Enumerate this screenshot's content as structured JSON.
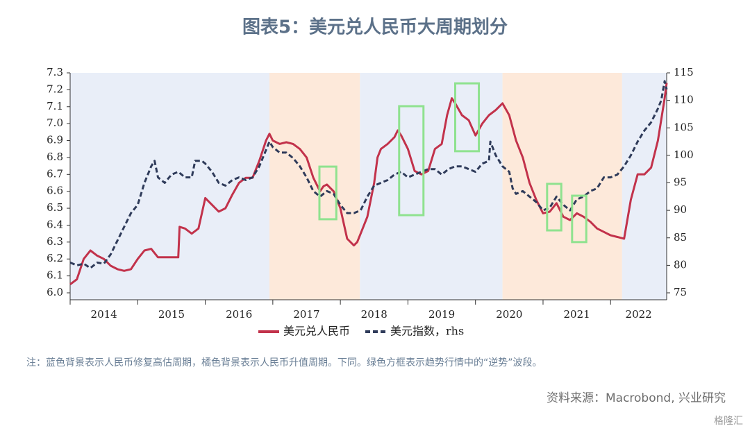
{
  "chart_data": {
    "type": "line",
    "title": "图表5：美元兑人民币大周期划分",
    "note": "注：蓝色背景表示人民币修复高估周期，橘色背景表示人民币升值周期。下同。绿色方框表示趋势行情中的“逆势”波段。",
    "source": "资料来源：Macrobond, 兴业研究",
    "watermark": "格隆汇",
    "xlim": [
      2014,
      2022.83
    ],
    "xticks": [
      {
        "value": 2014,
        "label": "2014"
      },
      {
        "value": 2015,
        "label": "2015"
      },
      {
        "value": 2016,
        "label": "2016"
      },
      {
        "value": 2017,
        "label": "2017"
      },
      {
        "value": 2018,
        "label": "2018"
      },
      {
        "value": 2019,
        "label": "2019"
      },
      {
        "value": 2020,
        "label": "2020"
      },
      {
        "value": 2021,
        "label": "2021"
      },
      {
        "value": 2022,
        "label": "2022"
      }
    ],
    "ylim": [
      6.0,
      7.3
    ],
    "yticks": [
      {
        "value": 6.0,
        "label": "6.0"
      },
      6.1,
      6.2,
      6.3,
      6.4,
      6.5,
      6.6,
      6.7,
      6.8,
      6.9,
      {
        "value": 7.0,
        "label": "7.0"
      },
      7.1,
      7.2,
      7.3
    ],
    "y2lim": [
      75,
      115
    ],
    "y2ticks": [
      75,
      80,
      85,
      90,
      95,
      100,
      105,
      110,
      115
    ],
    "bands": [
      {
        "start": 2014,
        "end": 2016.95,
        "color": "#e9eef8"
      },
      {
        "start": 2016.95,
        "end": 2018.29,
        "color": "#fde9da"
      },
      {
        "start": 2018.29,
        "end": 2020.4,
        "color": "#e9eef8"
      },
      {
        "start": 2020.4,
        "end": 2022.17,
        "color": "#fde9da"
      },
      {
        "start": 2022.17,
        "end": 2022.83,
        "color": "#e9eef8"
      }
    ],
    "boxes": [
      {
        "x": [
          2017.69,
          2017.94
        ],
        "y": [
          6.435,
          6.746
        ]
      },
      {
        "x": [
          2018.87,
          2019.23
        ],
        "y": [
          6.459,
          7.103
        ]
      },
      {
        "x": [
          2019.7,
          2020.05
        ],
        "y": [
          6.837,
          7.238
        ]
      },
      {
        "x": [
          2021.06,
          2021.27
        ],
        "y": [
          6.369,
          6.644
        ]
      },
      {
        "x": [
          2021.43,
          2021.64
        ],
        "y": [
          6.3,
          6.574
        ]
      }
    ],
    "box_color": "#8fe28f",
    "series": [
      {
        "name": "美元兑人民币",
        "color": "#c2324b",
        "style": "solid",
        "x": [
          2014.0,
          2014.1,
          2014.2,
          2014.3,
          2014.4,
          2014.5,
          2014.6,
          2014.7,
          2014.8,
          2014.9,
          2015.0,
          2015.1,
          2015.2,
          2015.3,
          2015.4,
          2015.5,
          2015.6,
          2015.62,
          2015.7,
          2015.8,
          2015.9,
          2016.0,
          2016.1,
          2016.2,
          2016.3,
          2016.4,
          2016.5,
          2016.6,
          2016.7,
          2016.8,
          2016.9,
          2016.95,
          2017.0,
          2017.1,
          2017.2,
          2017.3,
          2017.4,
          2017.5,
          2017.6,
          2017.7,
          2017.75,
          2017.8,
          2017.9,
          2018.0,
          2018.1,
          2018.2,
          2018.25,
          2018.3,
          2018.4,
          2018.5,
          2018.55,
          2018.6,
          2018.7,
          2018.8,
          2018.85,
          2018.9,
          2019.0,
          2019.1,
          2019.2,
          2019.3,
          2019.4,
          2019.5,
          2019.58,
          2019.65,
          2019.7,
          2019.8,
          2019.9,
          2020.0,
          2020.1,
          2020.2,
          2020.3,
          2020.4,
          2020.5,
          2020.6,
          2020.7,
          2020.8,
          2020.9,
          2021.0,
          2021.1,
          2021.2,
          2021.3,
          2021.4,
          2021.5,
          2021.6,
          2021.7,
          2021.8,
          2021.9,
          2022.0,
          2022.1,
          2022.2,
          2022.3,
          2022.4,
          2022.5,
          2022.6,
          2022.7,
          2022.8,
          2022.83
        ],
        "values": [
          6.05,
          6.08,
          6.2,
          6.25,
          6.22,
          6.2,
          6.16,
          6.14,
          6.13,
          6.14,
          6.2,
          6.25,
          6.26,
          6.21,
          6.21,
          6.21,
          6.21,
          6.39,
          6.38,
          6.35,
          6.38,
          6.56,
          6.52,
          6.48,
          6.5,
          6.58,
          6.65,
          6.68,
          6.68,
          6.78,
          6.9,
          6.94,
          6.9,
          6.88,
          6.89,
          6.88,
          6.85,
          6.8,
          6.68,
          6.6,
          6.63,
          6.64,
          6.6,
          6.5,
          6.32,
          6.28,
          6.3,
          6.35,
          6.45,
          6.65,
          6.8,
          6.85,
          6.88,
          6.92,
          6.96,
          6.93,
          6.85,
          6.72,
          6.7,
          6.72,
          6.85,
          6.88,
          7.05,
          7.15,
          7.12,
          7.05,
          7.02,
          6.93,
          7.0,
          7.05,
          7.08,
          7.12,
          7.05,
          6.9,
          6.8,
          6.65,
          6.55,
          6.47,
          6.48,
          6.53,
          6.45,
          6.43,
          6.47,
          6.45,
          6.42,
          6.38,
          6.36,
          6.34,
          6.33,
          6.32,
          6.55,
          6.7,
          6.7,
          6.74,
          6.9,
          7.15,
          7.24
        ]
      },
      {
        "name": "美元指数，rhs",
        "color": "#2f3b5a",
        "style": "dashed",
        "axis": "y2",
        "x": [
          2014.0,
          2014.1,
          2014.2,
          2014.3,
          2014.4,
          2014.5,
          2014.6,
          2014.7,
          2014.8,
          2014.9,
          2015.0,
          2015.1,
          2015.2,
          2015.25,
          2015.3,
          2015.4,
          2015.5,
          2015.6,
          2015.7,
          2015.8,
          2015.85,
          2015.95,
          2016.0,
          2016.1,
          2016.2,
          2016.3,
          2016.4,
          2016.5,
          2016.6,
          2016.7,
          2016.8,
          2016.95,
          2017.0,
          2017.1,
          2017.2,
          2017.3,
          2017.4,
          2017.5,
          2017.6,
          2017.7,
          2017.8,
          2017.9,
          2018.0,
          2018.1,
          2018.2,
          2018.3,
          2018.4,
          2018.5,
          2018.6,
          2018.7,
          2018.8,
          2018.9,
          2019.0,
          2019.1,
          2019.2,
          2019.3,
          2019.4,
          2019.5,
          2019.6,
          2019.7,
          2019.8,
          2019.9,
          2020.0,
          2020.1,
          2020.2,
          2020.22,
          2020.3,
          2020.4,
          2020.5,
          2020.55,
          2020.6,
          2020.7,
          2020.8,
          2020.9,
          2021.0,
          2021.1,
          2021.2,
          2021.3,
          2021.4,
          2021.5,
          2021.6,
          2021.7,
          2021.8,
          2021.9,
          2022.0,
          2022.1,
          2022.2,
          2022.3,
          2022.4,
          2022.5,
          2022.6,
          2022.7,
          2022.75,
          2022.8,
          2022.83
        ],
        "values": [
          80.5,
          80,
          80.3,
          79.5,
          80.5,
          80.3,
          82,
          84.5,
          87,
          89.5,
          91,
          95,
          98,
          99,
          96,
          95,
          96.5,
          97,
          96,
          96,
          99,
          99,
          98.5,
          97,
          95,
          94.5,
          95.5,
          96,
          95.5,
          96,
          98,
          102.5,
          101.5,
          100.5,
          100.5,
          99.5,
          98,
          96,
          93.5,
          92.5,
          93.5,
          93,
          91,
          89.5,
          89.5,
          90,
          92.5,
          94.5,
          95,
          95.5,
          96.5,
          97,
          96,
          96.5,
          97,
          97.5,
          97.5,
          96.5,
          97.5,
          98,
          98,
          97.5,
          97,
          98.5,
          99,
          102.5,
          100,
          98,
          97,
          94,
          93,
          93.5,
          92.5,
          91.5,
          90,
          90.5,
          92.5,
          91,
          90,
          92,
          92.5,
          93.5,
          94,
          96,
          96,
          96.5,
          98,
          100,
          102.5,
          104.5,
          106,
          108.5,
          110,
          113.5,
          112
        ]
      }
    ]
  }
}
